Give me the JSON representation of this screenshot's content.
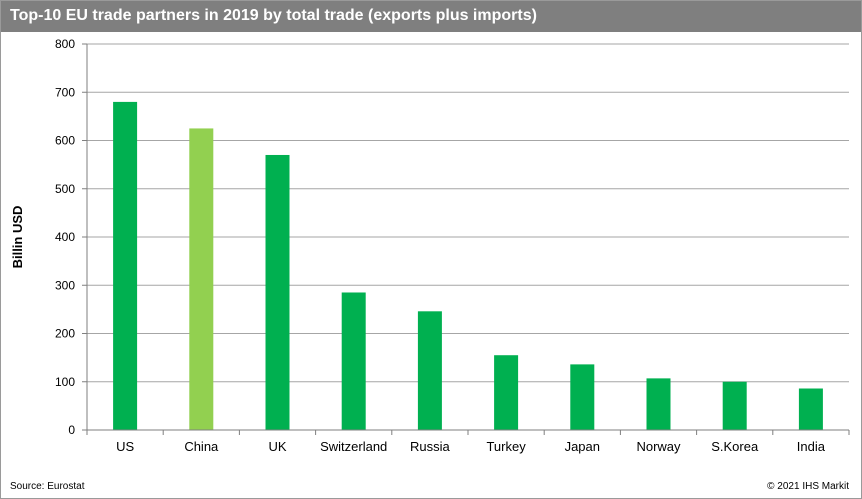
{
  "chart_data": {
    "type": "bar",
    "title": "Top-10 EU trade partners in 2019 by total trade (exports plus imports)",
    "xlabel": "",
    "ylabel": "Billin USD",
    "ylim": [
      0,
      800
    ],
    "yticks": [
      0,
      100,
      200,
      300,
      400,
      500,
      600,
      700,
      800
    ],
    "grid": true,
    "categories": [
      "US",
      "China",
      "UK",
      "Switzerland",
      "Russia",
      "Turkey",
      "Japan",
      "Norway",
      "S.Korea",
      "India"
    ],
    "values": [
      680,
      625,
      570,
      285,
      246,
      155,
      136,
      107,
      100,
      86
    ],
    "bar_color": "#00b050",
    "highlight_color": "#92d050",
    "highlight_index": 1,
    "grid_color": "#a6a6a6",
    "title_bar_color": "#7f7f7f"
  },
  "footer": {
    "source": "Source: Eurostat",
    "credit": "© 2021 IHS Markit"
  }
}
